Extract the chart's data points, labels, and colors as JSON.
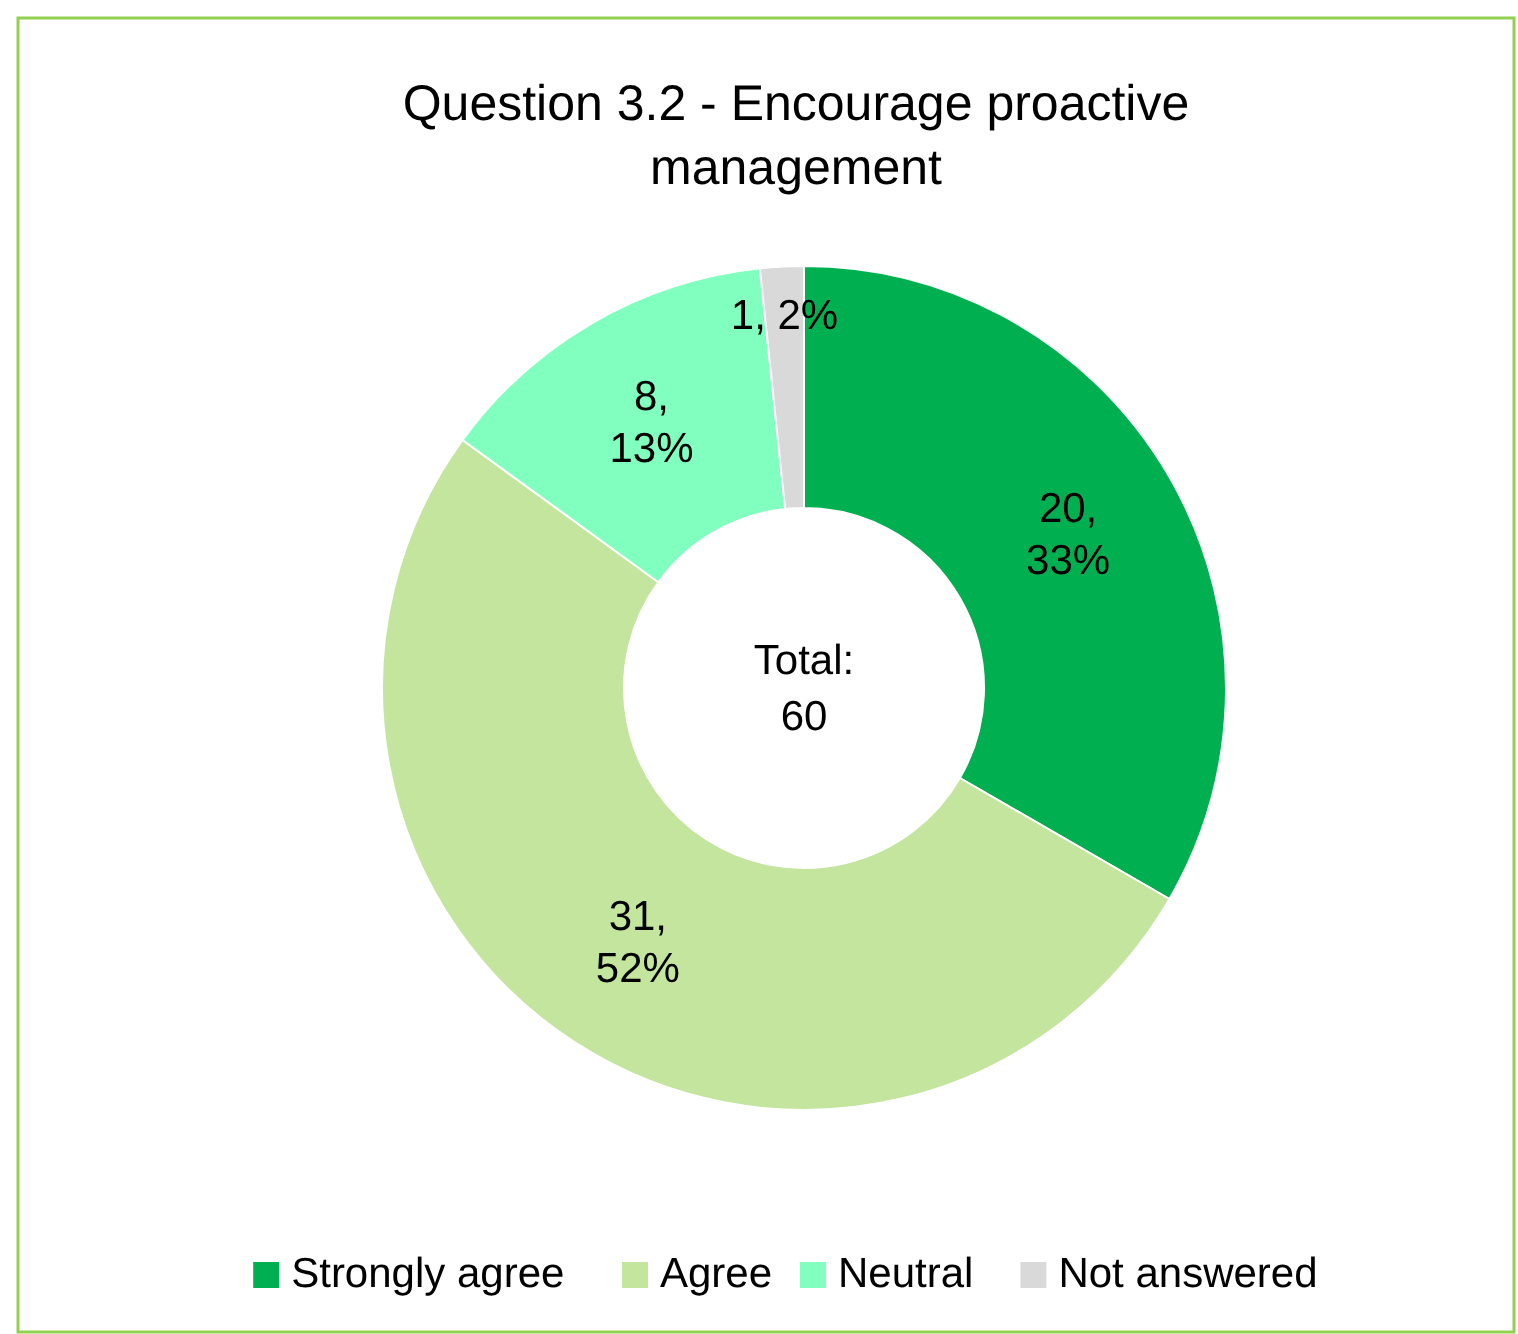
{
  "chart_data": {
    "type": "donut",
    "title": "Question 3.2 - Encourage proactive management",
    "categories": [
      "Strongly agree",
      "Agree",
      "Neutral",
      "Not answered"
    ],
    "values": [
      20,
      31,
      8,
      1
    ],
    "colors": [
      "#00b050",
      "#c3e59d",
      "#80ffbf",
      "#d9d9d9"
    ],
    "value_labels": [
      "20, 33%",
      "31, 52%",
      "8, 13%",
      "1, 2%"
    ],
    "annotations": [
      "Total: 60"
    ],
    "legend": "bottom"
  }
}
